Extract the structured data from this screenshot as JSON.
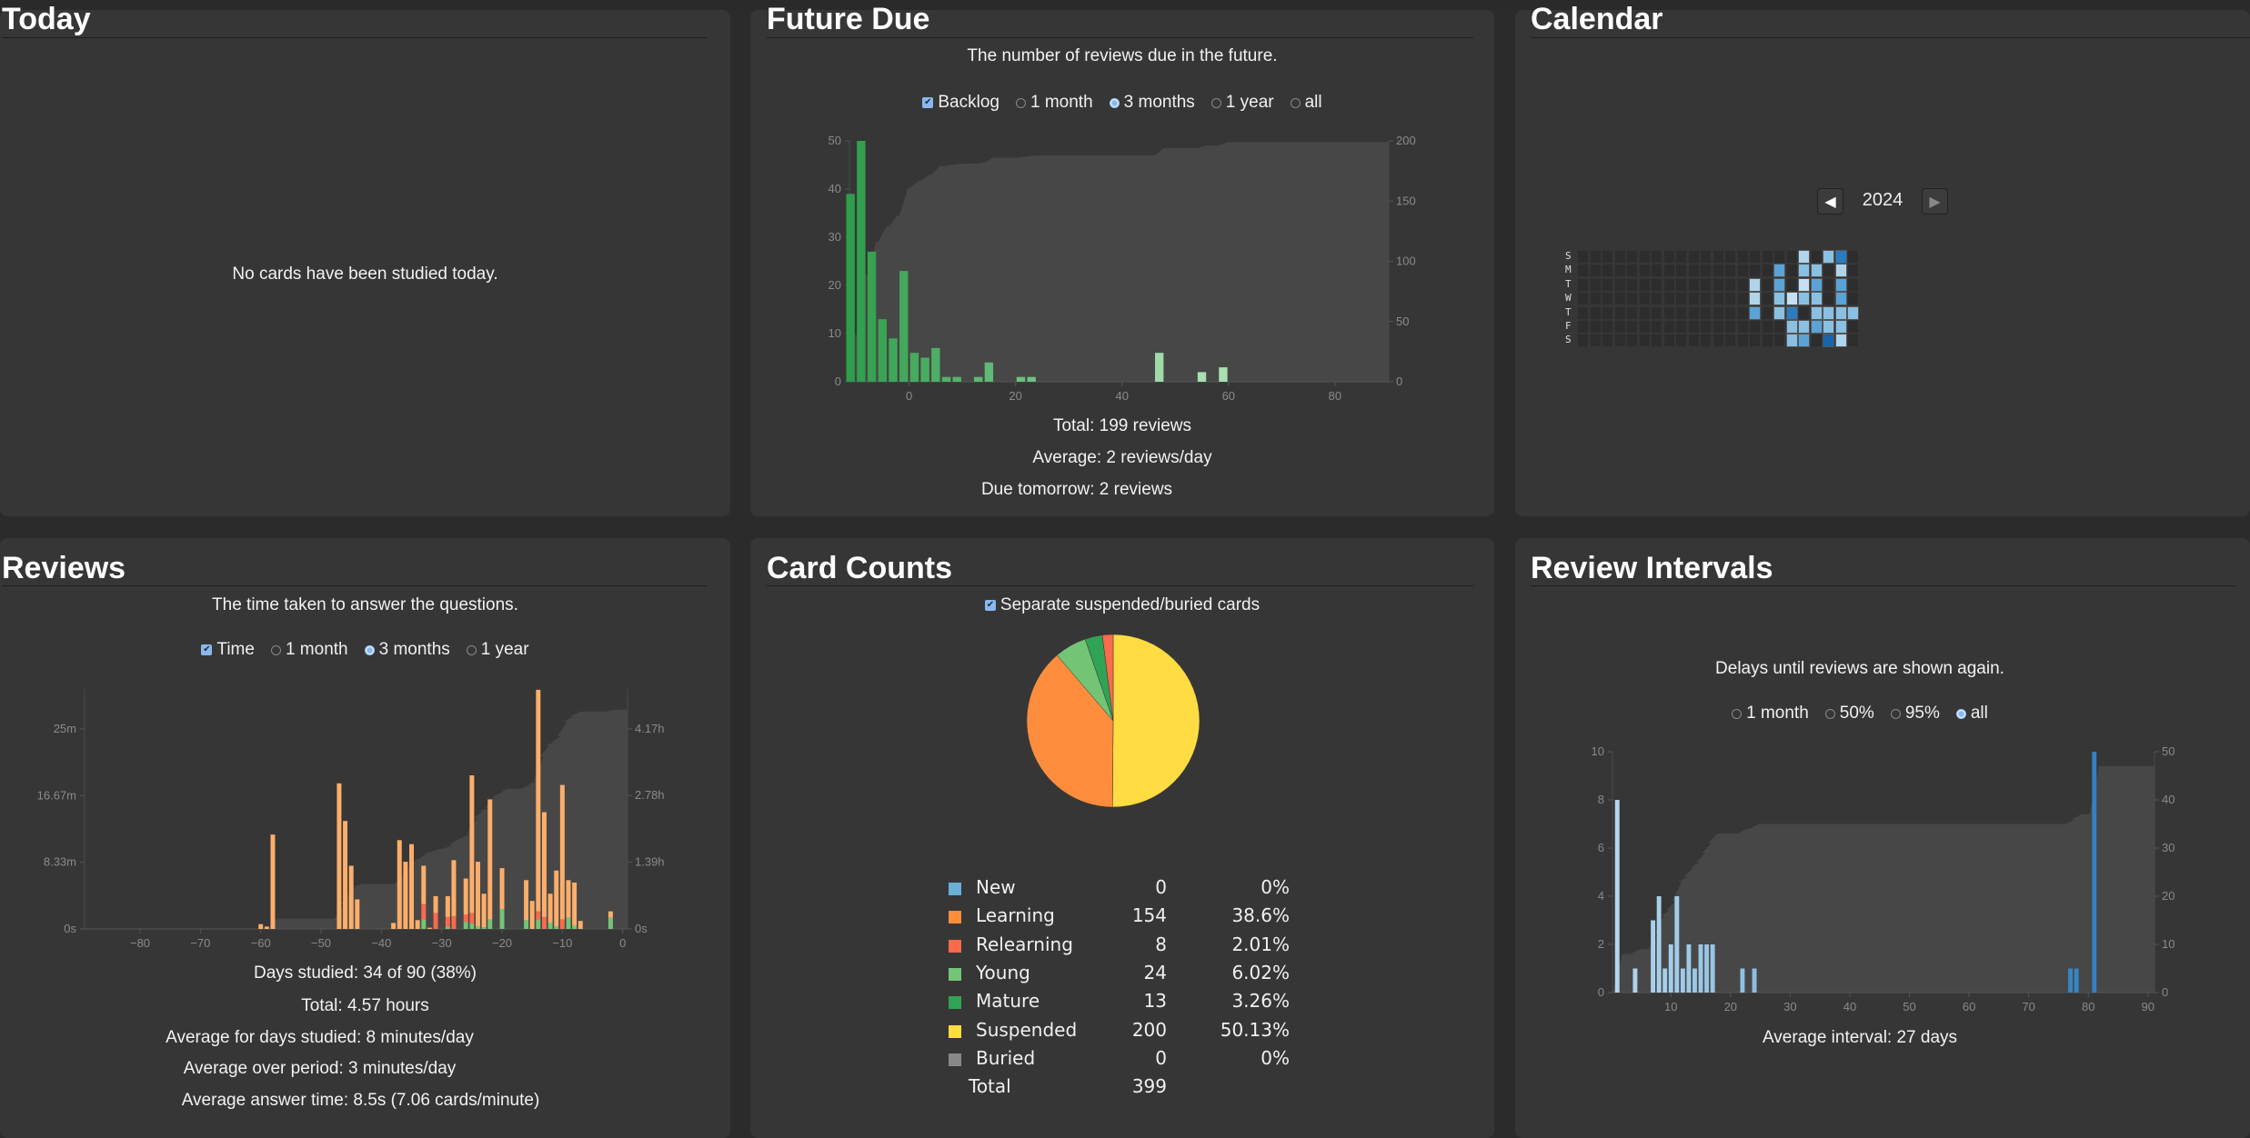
{
  "today": {
    "title": "Today",
    "message": "No cards have been studied today."
  },
  "future_due": {
    "title": "Future Due",
    "subtitle": "The number of reviews due in the future.",
    "controls": [
      {
        "type": "checkbox",
        "label": "Backlog",
        "checked": true
      },
      {
        "type": "radio",
        "label": "1 month",
        "checked": false
      },
      {
        "type": "radio",
        "label": "3 months",
        "checked": true
      },
      {
        "type": "radio",
        "label": "1 year",
        "checked": false
      },
      {
        "type": "radio",
        "label": "all",
        "checked": false
      }
    ],
    "stats": [
      "Total: 199 reviews",
      "Average: 2 reviews/day",
      "Due tomorrow: 2 reviews"
    ]
  },
  "calendar": {
    "title": "Calendar",
    "year": "2024",
    "prev_icon": "triangle-left-icon",
    "next_icon": "triangle-right-icon",
    "day_labels": [
      "S",
      "M",
      "T",
      "W",
      "T",
      "F",
      "S"
    ],
    "weeks_shown": 23,
    "active_days": [
      {
        "week": 18,
        "day": 0,
        "level": 1
      },
      {
        "week": 20,
        "day": 0,
        "level": 2
      },
      {
        "week": 21,
        "day": 0,
        "level": 4
      },
      {
        "week": 16,
        "day": 1,
        "level": 3
      },
      {
        "week": 18,
        "day": 1,
        "level": 2
      },
      {
        "week": 19,
        "day": 1,
        "level": 2
      },
      {
        "week": 21,
        "day": 1,
        "level": 1
      },
      {
        "week": 14,
        "day": 2,
        "level": 1
      },
      {
        "week": 16,
        "day": 2,
        "level": 3
      },
      {
        "week": 18,
        "day": 2,
        "level": 0
      },
      {
        "week": 19,
        "day": 2,
        "level": 3
      },
      {
        "week": 21,
        "day": 2,
        "level": 3
      },
      {
        "week": 14,
        "day": 3,
        "level": 1
      },
      {
        "week": 16,
        "day": 3,
        "level": 2
      },
      {
        "week": 17,
        "day": 3,
        "level": 0
      },
      {
        "week": 18,
        "day": 3,
        "level": 2
      },
      {
        "week": 19,
        "day": 3,
        "level": 2
      },
      {
        "week": 21,
        "day": 3,
        "level": 3
      },
      {
        "week": 14,
        "day": 4,
        "level": 3
      },
      {
        "week": 16,
        "day": 4,
        "level": 2
      },
      {
        "week": 17,
        "day": 4,
        "level": 4
      },
      {
        "week": 19,
        "day": 4,
        "level": 2
      },
      {
        "week": 20,
        "day": 4,
        "level": 2
      },
      {
        "week": 21,
        "day": 4,
        "level": 2
      },
      {
        "week": 22,
        "day": 4,
        "level": 2
      },
      {
        "week": 17,
        "day": 5,
        "level": 2
      },
      {
        "week": 18,
        "day": 5,
        "level": 2
      },
      {
        "week": 19,
        "day": 5,
        "level": 3
      },
      {
        "week": 20,
        "day": 5,
        "level": 2
      },
      {
        "week": 21,
        "day": 5,
        "level": 2
      },
      {
        "week": 17,
        "day": 6,
        "level": 2
      },
      {
        "week": 18,
        "day": 6,
        "level": 3
      },
      {
        "week": 20,
        "day": 6,
        "level": 5
      },
      {
        "week": 21,
        "day": 6,
        "level": 1
      }
    ],
    "level_colors": [
      "#c6dff2",
      "#b0d4ec",
      "#8ac0e2",
      "#5aa3d6",
      "#2b7bc1",
      "#1764ab"
    ],
    "empty_color": "#2d2d2d"
  },
  "reviews": {
    "title": "Reviews",
    "subtitle": "The time taken to answer the questions.",
    "controls": [
      {
        "type": "checkbox",
        "label": "Time",
        "checked": true
      },
      {
        "type": "radio",
        "label": "1 month",
        "checked": false
      },
      {
        "type": "radio",
        "label": "3 months",
        "checked": true
      },
      {
        "type": "radio",
        "label": "1 year",
        "checked": false
      }
    ],
    "stats": [
      "Days studied: 34 of 90 (38%)",
      "Total: 4.57 hours",
      "Average for days studied: 8 minutes/day",
      "Average over period: 3 minutes/day",
      "Average answer time: 8.5s (7.06 cards/minute)"
    ]
  },
  "card_counts": {
    "title": "Card Counts",
    "checkbox": {
      "label": "Separate suspended/buried cards",
      "checked": true
    },
    "rows": [
      {
        "label": "New",
        "count": "0",
        "percent": "0%",
        "color": "#6baed6"
      },
      {
        "label": "Learning",
        "count": "154",
        "percent": "38.6%",
        "color": "#fd8d3c"
      },
      {
        "label": "Relearning",
        "count": "8",
        "percent": "2.01%",
        "color": "#fb6a4a"
      },
      {
        "label": "Young",
        "count": "24",
        "percent": "6.02%",
        "color": "#74c476"
      },
      {
        "label": "Mature",
        "count": "13",
        "percent": "3.26%",
        "color": "#31a354"
      },
      {
        "label": "Suspended",
        "count": "200",
        "percent": "50.13%",
        "color": "#ffdc41"
      },
      {
        "label": "Buried",
        "count": "0",
        "percent": "0%",
        "color": "#888888"
      }
    ],
    "total_label": "Total",
    "total": "399"
  },
  "review_intervals": {
    "title": "Review Intervals",
    "subtitle": "Delays until reviews are shown again.",
    "controls": [
      {
        "type": "radio",
        "label": "1 month",
        "checked": false
      },
      {
        "type": "radio",
        "label": "50%",
        "checked": false
      },
      {
        "type": "radio",
        "label": "95%",
        "checked": false
      },
      {
        "type": "radio",
        "label": "all",
        "checked": true
      }
    ],
    "stats": [
      "Average interval: 27 days"
    ]
  },
  "chart_data": [
    {
      "id": "future_due",
      "type": "bar",
      "x": [
        -11,
        -9,
        -7,
        -5,
        -3,
        -1,
        1,
        3,
        5,
        7,
        9,
        13,
        15,
        21,
        23,
        47,
        55,
        59
      ],
      "values": [
        39,
        50,
        27,
        13,
        9,
        23,
        6,
        5,
        7,
        1,
        1,
        1,
        4,
        1,
        1,
        6,
        2,
        3
      ],
      "xlim": [
        -11.2,
        90.1
      ],
      "ylim": [
        0,
        50
      ],
      "y2lim": [
        0,
        200
      ],
      "xticks": [
        0,
        20,
        40,
        60,
        80
      ],
      "yticks": [
        0,
        10,
        20,
        30,
        40,
        50
      ],
      "y2ticks": [
        0,
        50,
        100,
        150,
        200
      ],
      "cumulative_area": true,
      "colors": [
        "#2e9e4b",
        "#a8e0af"
      ]
    },
    {
      "id": "reviews",
      "type": "bar",
      "stacked": true,
      "unit": "minutes",
      "x": [
        -60,
        -59,
        -58,
        -47,
        -46,
        -45,
        -44,
        -38,
        -37,
        -36,
        -35,
        -34,
        -33,
        -32,
        -31,
        -29,
        -28,
        -26,
        -25,
        -24,
        -23,
        -22,
        -20,
        -16,
        -15,
        -14,
        -13,
        -12,
        -11,
        -10,
        -9,
        -8,
        -7,
        -2
      ],
      "series": [
        {
          "name": "Learning",
          "color": "#fdae6b",
          "values": [
            0.6,
            0.3,
            11.8,
            18.2,
            13.5,
            7.9,
            3.7,
            0.75,
            11.1,
            8.4,
            10.6,
            1.1,
            4.8,
            0.15,
            2.1,
            2.6,
            7.0,
            4.5,
            17.2,
            8.1,
            4.2,
            15.0,
            5.1,
            5.0,
            3.5,
            27.7,
            13.1,
            3.6,
            7.0,
            16.8,
            4.7,
            5.4,
            1.0,
            0.8
          ]
        },
        {
          "name": "Relearning",
          "color": "#fb6a4a",
          "values": [
            0,
            0,
            0,
            0,
            0,
            0,
            0,
            0,
            0,
            0,
            0,
            0,
            1.9,
            0,
            2.0,
            1.2,
            1.6,
            0.9,
            1.3,
            0,
            0,
            0,
            0,
            0,
            0,
            1.0,
            1.5,
            0,
            0,
            1.2,
            0,
            0,
            0,
            0
          ]
        },
        {
          "name": "Young",
          "color": "#74c476",
          "values": [
            0,
            0,
            0,
            0,
            0,
            0,
            0,
            0,
            0,
            0,
            0,
            0,
            1.2,
            0,
            0,
            0.3,
            0,
            0.9,
            0.7,
            0.3,
            0.2,
            1.2,
            2.5,
            1.1,
            0,
            1.2,
            0,
            0.8,
            0.3,
            0,
            1.4,
            0.4,
            0,
            1.4
          ]
        }
      ],
      "xlim": [
        -89.2,
        0.8
      ],
      "ylim": [
        0,
        30
      ],
      "y2lim": [
        0,
        5
      ],
      "xticks": [
        -80,
        -70,
        -60,
        -50,
        -40,
        -30,
        -20,
        -10,
        0
      ],
      "yticks": [
        0,
        8.33,
        16.67,
        25
      ],
      "ytick_labels": [
        "0s",
        "8.33m",
        "16.67m",
        "25m"
      ],
      "y2ticks": [
        0,
        1.39,
        2.78,
        4.17
      ],
      "y2tick_labels": [
        "0s",
        "1.39h",
        "2.78h",
        "4.17h"
      ],
      "cumulative_area": true,
      "cumulative_total_hours": 4.57
    },
    {
      "id": "card_counts",
      "type": "pie",
      "labels": [
        "Suspended",
        "Learning",
        "Young",
        "Mature",
        "Relearning"
      ],
      "values": [
        200,
        154,
        24,
        13,
        8
      ],
      "colors": [
        "#ffdc41",
        "#fd8d3c",
        "#74c476",
        "#31a354",
        "#fb6a4a"
      ]
    },
    {
      "id": "review_intervals",
      "type": "bar",
      "x": [
        1,
        4,
        7,
        8,
        9,
        10,
        11,
        12,
        13,
        14,
        15,
        16,
        17,
        22,
        24,
        77,
        78,
        81
      ],
      "values": [
        8,
        1,
        3,
        4,
        1,
        2,
        4,
        1,
        2,
        1,
        2,
        2,
        2,
        1,
        1,
        1,
        1,
        10
      ],
      "xlim": [
        0.2,
        91.1
      ],
      "ylim": [
        0,
        10
      ],
      "y2lim": [
        0,
        50
      ],
      "xticks": [
        10,
        20,
        30,
        40,
        50,
        60,
        70,
        80,
        90
      ],
      "yticks": [
        0,
        2,
        4,
        6,
        8,
        10
      ],
      "y2ticks": [
        0,
        10,
        20,
        30,
        40,
        50
      ],
      "cumulative_area": true,
      "colors": [
        "#b3d7ee",
        "#2f7fc1"
      ]
    }
  ]
}
